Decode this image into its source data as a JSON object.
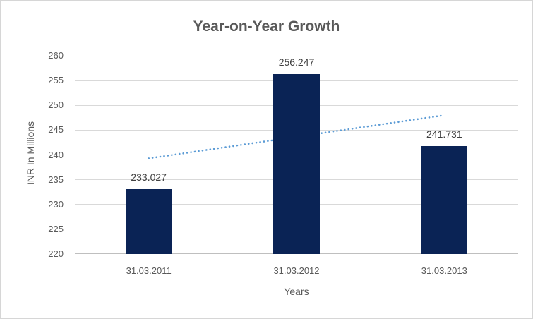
{
  "chart_data": {
    "type": "bar",
    "title": "Year-on-Year Growth",
    "xlabel": "Years",
    "ylabel": "INR In Millions",
    "categories": [
      "31.03.2011",
      "31.03.2012",
      "31.03.2013"
    ],
    "values": [
      233.027,
      256.247,
      241.731
    ],
    "data_labels": [
      "233.027",
      "256.247",
      "241.731"
    ],
    "ylim": [
      220,
      260
    ],
    "ytick_step": 5,
    "yticks": [
      260,
      255,
      250,
      245,
      240,
      235,
      230,
      225,
      220
    ],
    "grid": "horizontal",
    "legend": "none",
    "bar_color": "#0a2355",
    "trendline": {
      "type": "linear",
      "style": "dotted",
      "color": "#5b9bd5",
      "start_value": 239.3,
      "end_value": 248.0
    },
    "colors": {
      "title_text": "#595959",
      "axis_text": "#595959",
      "data_label_text": "#404040",
      "gridline": "#d9d9d9",
      "axis_line": "#bfbfbf",
      "chart_border": "#d6d6d6",
      "background": "#ffffff"
    }
  }
}
